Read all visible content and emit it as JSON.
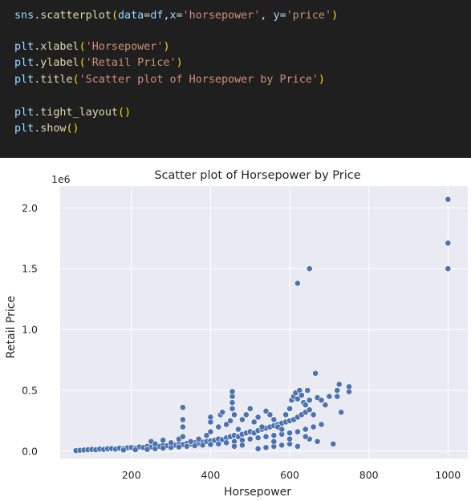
{
  "code_cell": {
    "lines": [
      {
        "segments": [
          {
            "text": "sns",
            "color": "#9cdcfe"
          },
          {
            "text": ".",
            "color": "#d4d4d4"
          },
          {
            "text": "scatterplot",
            "color": "#dcdcaa"
          },
          {
            "text": "(",
            "color": "#ffd700"
          },
          {
            "text": "data",
            "color": "#9cdcfe"
          },
          {
            "text": "=",
            "color": "#d4d4d4"
          },
          {
            "text": "df",
            "color": "#9cdcfe"
          },
          {
            "text": ",",
            "color": "#d4d4d4"
          },
          {
            "text": "x",
            "color": "#9cdcfe"
          },
          {
            "text": "=",
            "color": "#d4d4d4"
          },
          {
            "text": "'horsepower'",
            "color": "#ce9178"
          },
          {
            "text": ", ",
            "color": "#d4d4d4"
          },
          {
            "text": "y",
            "color": "#9cdcfe"
          },
          {
            "text": "=",
            "color": "#d4d4d4"
          },
          {
            "text": "'price'",
            "color": "#ce9178"
          },
          {
            "text": ")",
            "color": "#ffd700"
          }
        ]
      },
      {
        "segments": []
      },
      {
        "segments": [
          {
            "text": "plt",
            "color": "#9cdcfe"
          },
          {
            "text": ".",
            "color": "#d4d4d4"
          },
          {
            "text": "xlabel",
            "color": "#dcdcaa"
          },
          {
            "text": "(",
            "color": "#ffd700"
          },
          {
            "text": "'Horsepower'",
            "color": "#ce9178"
          },
          {
            "text": ")",
            "color": "#ffd700"
          }
        ]
      },
      {
        "segments": [
          {
            "text": "plt",
            "color": "#9cdcfe"
          },
          {
            "text": ".",
            "color": "#d4d4d4"
          },
          {
            "text": "ylabel",
            "color": "#dcdcaa"
          },
          {
            "text": "(",
            "color": "#ffd700"
          },
          {
            "text": "'Retail Price'",
            "color": "#ce9178"
          },
          {
            "text": ")",
            "color": "#ffd700"
          }
        ]
      },
      {
        "segments": [
          {
            "text": "plt",
            "color": "#9cdcfe"
          },
          {
            "text": ".",
            "color": "#d4d4d4"
          },
          {
            "text": "title",
            "color": "#dcdcaa"
          },
          {
            "text": "(",
            "color": "#ffd700"
          },
          {
            "text": "'Scatter plot of Horsepower by Price'",
            "color": "#ce9178"
          },
          {
            "text": ")",
            "color": "#ffd700"
          }
        ]
      },
      {
        "segments": []
      },
      {
        "segments": [
          {
            "text": "plt",
            "color": "#9cdcfe"
          },
          {
            "text": ".",
            "color": "#d4d4d4"
          },
          {
            "text": "tight_layout",
            "color": "#dcdcaa"
          },
          {
            "text": "()",
            "color": "#ffd700"
          }
        ]
      },
      {
        "segments": [
          {
            "text": "plt",
            "color": "#9cdcfe"
          },
          {
            "text": ".",
            "color": "#d4d4d4"
          },
          {
            "text": "show",
            "color": "#dcdcaa"
          },
          {
            "text": "()",
            "color": "#ffd700"
          }
        ]
      }
    ]
  },
  "chart_data": {
    "type": "scatter",
    "title": "Scatter plot of Horsepower by Price",
    "xlabel": "Horsepower",
    "ylabel": "Retail Price",
    "y_offset_label": "1e6",
    "xlim": [
      20,
      1050
    ],
    "ylim": [
      -0.06,
      2.18
    ],
    "xticks": [
      200,
      400,
      600,
      800,
      1000
    ],
    "yticks": [
      0.0,
      0.5,
      1.0,
      1.5,
      2.0
    ],
    "ytick_labels": [
      "0.0",
      "0.5",
      "1.0",
      "1.5",
      "2.0"
    ],
    "xtick_labels": [
      "200",
      "400",
      "600",
      "800",
      "1000"
    ],
    "grid": true,
    "background": "#eaeaf2",
    "point_color": "#4c72b0",
    "point_edge": "#ffffff",
    "points": [
      [
        60,
        0.005
      ],
      [
        70,
        0.008
      ],
      [
        80,
        0.01
      ],
      [
        90,
        0.012
      ],
      [
        100,
        0.015
      ],
      [
        110,
        0.012
      ],
      [
        120,
        0.018
      ],
      [
        130,
        0.015
      ],
      [
        140,
        0.02
      ],
      [
        150,
        0.022
      ],
      [
        160,
        0.018
      ],
      [
        170,
        0.025
      ],
      [
        180,
        0.022
      ],
      [
        190,
        0.028
      ],
      [
        200,
        0.03
      ],
      [
        210,
        0.025
      ],
      [
        220,
        0.035
      ],
      [
        230,
        0.03
      ],
      [
        240,
        0.04
      ],
      [
        250,
        0.035
      ],
      [
        260,
        0.045
      ],
      [
        270,
        0.04
      ],
      [
        280,
        0.05
      ],
      [
        290,
        0.045
      ],
      [
        300,
        0.055
      ],
      [
        310,
        0.05
      ],
      [
        320,
        0.06
      ],
      [
        330,
        0.055
      ],
      [
        340,
        0.065
      ],
      [
        350,
        0.06
      ],
      [
        360,
        0.07
      ],
      [
        370,
        0.065
      ],
      [
        380,
        0.075
      ],
      [
        390,
        0.08
      ],
      [
        400,
        0.085
      ],
      [
        410,
        0.09
      ],
      [
        420,
        0.1
      ],
      [
        430,
        0.095
      ],
      [
        440,
        0.11
      ],
      [
        450,
        0.12
      ],
      [
        460,
        0.13
      ],
      [
        470,
        0.12
      ],
      [
        480,
        0.14
      ],
      [
        490,
        0.15
      ],
      [
        500,
        0.16
      ],
      [
        510,
        0.15
      ],
      [
        520,
        0.17
      ],
      [
        530,
        0.18
      ],
      [
        540,
        0.19
      ],
      [
        550,
        0.2
      ],
      [
        560,
        0.21
      ],
      [
        570,
        0.22
      ],
      [
        580,
        0.23
      ],
      [
        590,
        0.24
      ],
      [
        600,
        0.25
      ],
      [
        610,
        0.26
      ],
      [
        620,
        0.28
      ],
      [
        630,
        0.3
      ],
      [
        640,
        0.32
      ],
      [
        650,
        0.34
      ],
      [
        180,
        0.01
      ],
      [
        210,
        0.012
      ],
      [
        240,
        0.015
      ],
      [
        260,
        0.02
      ],
      [
        280,
        0.025
      ],
      [
        300,
        0.03
      ],
      [
        320,
        0.035
      ],
      [
        340,
        0.04
      ],
      [
        360,
        0.045
      ],
      [
        380,
        0.05
      ],
      [
        400,
        0.055
      ],
      [
        420,
        0.06
      ],
      [
        440,
        0.07
      ],
      [
        460,
        0.08
      ],
      [
        480,
        0.09
      ],
      [
        500,
        0.1
      ],
      [
        520,
        0.11
      ],
      [
        540,
        0.12
      ],
      [
        560,
        0.13
      ],
      [
        580,
        0.14
      ],
      [
        600,
        0.15
      ],
      [
        620,
        0.16
      ],
      [
        640,
        0.18
      ],
      [
        660,
        0.2
      ],
      [
        680,
        0.22
      ],
      [
        250,
        0.08
      ],
      [
        260,
        0.06
      ],
      [
        280,
        0.09
      ],
      [
        300,
        0.07
      ],
      [
        320,
        0.1
      ],
      [
        330,
        0.12
      ],
      [
        330,
        0.2
      ],
      [
        330,
        0.26
      ],
      [
        330,
        0.36
      ],
      [
        350,
        0.08
      ],
      [
        370,
        0.1
      ],
      [
        390,
        0.13
      ],
      [
        400,
        0.16
      ],
      [
        400,
        0.24
      ],
      [
        400,
        0.28
      ],
      [
        420,
        0.2
      ],
      [
        425,
        0.3
      ],
      [
        430,
        0.32
      ],
      [
        440,
        0.22
      ],
      [
        450,
        0.25
      ],
      [
        455,
        0.35
      ],
      [
        455,
        0.4
      ],
      [
        455,
        0.45
      ],
      [
        455,
        0.49
      ],
      [
        460,
        0.3
      ],
      [
        470,
        0.18
      ],
      [
        480,
        0.26
      ],
      [
        490,
        0.3
      ],
      [
        500,
        0.35
      ],
      [
        510,
        0.24
      ],
      [
        520,
        0.28
      ],
      [
        530,
        0.2
      ],
      [
        540,
        0.33
      ],
      [
        550,
        0.3
      ],
      [
        560,
        0.26
      ],
      [
        570,
        0.2
      ],
      [
        580,
        0.18
      ],
      [
        590,
        0.3
      ],
      [
        600,
        0.35
      ],
      [
        605,
        0.42
      ],
      [
        610,
        0.45
      ],
      [
        615,
        0.48
      ],
      [
        620,
        0.43
      ],
      [
        625,
        0.5
      ],
      [
        630,
        0.46
      ],
      [
        635,
        0.4
      ],
      [
        640,
        0.38
      ],
      [
        645,
        0.5
      ],
      [
        650,
        0.42
      ],
      [
        660,
        0.3
      ],
      [
        665,
        0.64
      ],
      [
        670,
        0.44
      ],
      [
        680,
        0.42
      ],
      [
        690,
        0.38
      ],
      [
        700,
        0.45
      ],
      [
        720,
        0.5
      ],
      [
        720,
        0.45
      ],
      [
        725,
        0.55
      ],
      [
        730,
        0.32
      ],
      [
        750,
        0.49
      ],
      [
        750,
        0.53
      ],
      [
        710,
        0.06
      ],
      [
        670,
        0.08
      ],
      [
        650,
        0.1
      ],
      [
        640,
        0.12
      ],
      [
        520,
        0.02
      ],
      [
        540,
        0.03
      ],
      [
        560,
        0.04
      ],
      [
        580,
        0.05
      ],
      [
        600,
        0.06
      ],
      [
        620,
        0.04
      ],
      [
        560,
        0.08
      ],
      [
        600,
        0.1
      ],
      [
        460,
        0.04
      ],
      [
        480,
        0.05
      ],
      [
        620,
        1.38
      ],
      [
        650,
        1.5
      ],
      [
        1000,
        2.07
      ],
      [
        1000,
        1.71
      ],
      [
        1000,
        1.5
      ]
    ]
  }
}
